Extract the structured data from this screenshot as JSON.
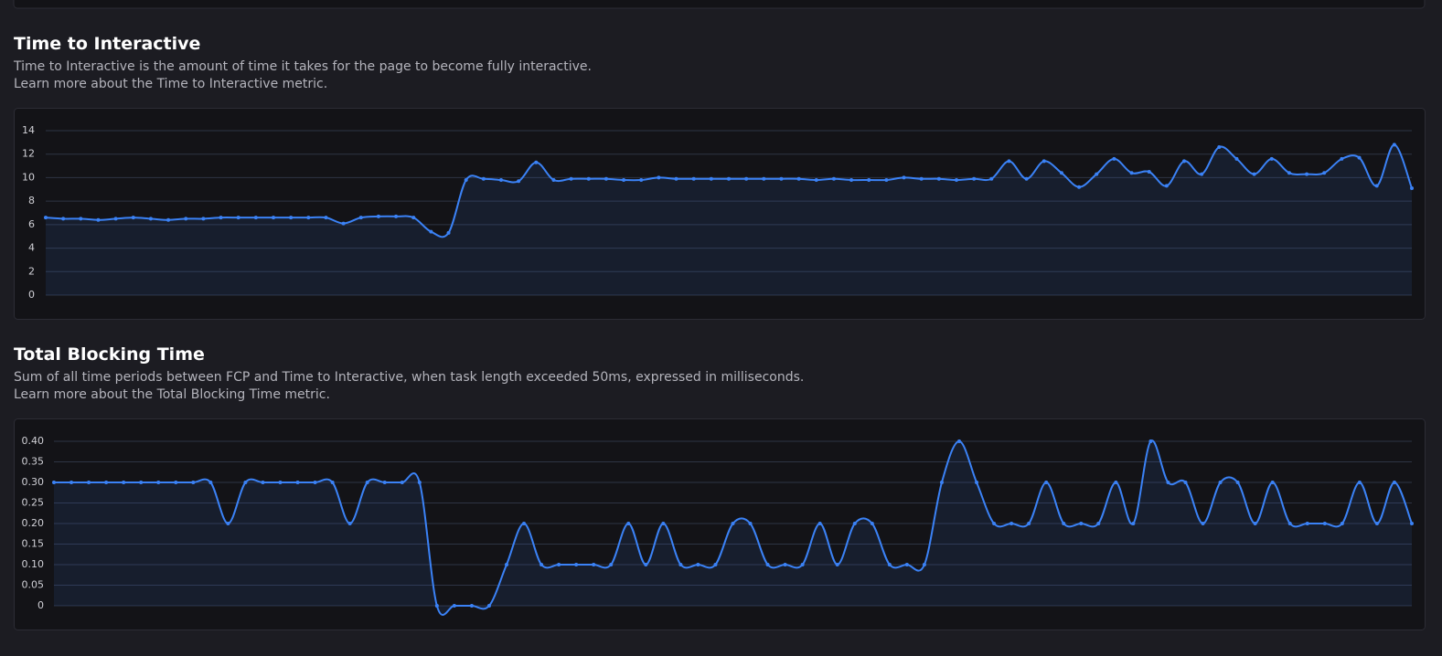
{
  "chart_data": [
    {
      "type": "line",
      "title": "Time to Interactive",
      "subtitle": "Time to Interactive is the amount of time it takes for the page to become fully interactive.",
      "note": "Learn more about the Time to Interactive metric.",
      "values": [
        6.6,
        6.5,
        6.5,
        6.4,
        6.5,
        6.6,
        6.5,
        6.4,
        6.5,
        6.5,
        6.6,
        6.6,
        6.6,
        6.6,
        6.6,
        6.6,
        6.6,
        6.1,
        6.6,
        6.7,
        6.7,
        6.6,
        5.4,
        5.3,
        9.8,
        9.9,
        9.8,
        9.7,
        11.3,
        9.8,
        9.9,
        9.9,
        9.9,
        9.8,
        9.8,
        10.0,
        9.9,
        9.9,
        9.9,
        9.9,
        9.9,
        9.9,
        9.9,
        9.9,
        9.8,
        9.9,
        9.8,
        9.8,
        9.8,
        10.0,
        9.9,
        9.9,
        9.8,
        9.9,
        9.9,
        11.4,
        9.9,
        11.4,
        10.4,
        9.2,
        10.3,
        11.6,
        10.4,
        10.5,
        9.3,
        11.4,
        10.3,
        12.6,
        11.6,
        10.3,
        11.6,
        10.4,
        10.3,
        10.4,
        11.6,
        11.7,
        9.3,
        12.8,
        9.1
      ],
      "color": "#3b82f6",
      "ylim": [
        0,
        14
      ],
      "yticks": [
        0,
        2,
        4,
        6,
        8,
        10,
        12,
        14
      ],
      "grid": true
    },
    {
      "type": "line",
      "title": "Total Blocking Time",
      "subtitle": "Sum of all time periods between FCP and Time to Interactive, when task length exceeded 50ms, expressed in milliseconds.",
      "note": "Learn more about the Total Blocking Time metric.",
      "values": [
        0.3,
        0.3,
        0.3,
        0.3,
        0.3,
        0.3,
        0.3,
        0.3,
        0.3,
        0.3,
        0.2,
        0.3,
        0.3,
        0.3,
        0.3,
        0.3,
        0.3,
        0.2,
        0.3,
        0.3,
        0.3,
        0.3,
        0,
        0,
        0,
        0,
        0.1,
        0.2,
        0.1,
        0.1,
        0.1,
        0.1,
        0.1,
        0.2,
        0.1,
        0.2,
        0.1,
        0.1,
        0.1,
        0.2,
        0.2,
        0.1,
        0.1,
        0.1,
        0.2,
        0.1,
        0.2,
        0.2,
        0.1,
        0.1,
        0.1,
        0.3,
        0.4,
        0.3,
        0.2,
        0.2,
        0.2,
        0.3,
        0.2,
        0.2,
        0.2,
        0.3,
        0.2,
        0.4,
        0.3,
        0.3,
        0.2,
        0.3,
        0.3,
        0.2,
        0.3,
        0.2,
        0.2,
        0.2,
        0.2,
        0.3,
        0.2,
        0.3,
        0.2
      ],
      "color": "#3b82f6",
      "ylim": [
        0,
        0.4
      ],
      "yticks": [
        0,
        0.05,
        {
          "value": 0.1,
          "label": "0.10"
        },
        0.15,
        {
          "value": 0.2,
          "label": "0.20"
        },
        0.25,
        {
          "value": 0.3,
          "label": "0.30"
        },
        0.35,
        {
          "value": 0.4,
          "label": "0.40"
        }
      ],
      "grid": true
    }
  ]
}
